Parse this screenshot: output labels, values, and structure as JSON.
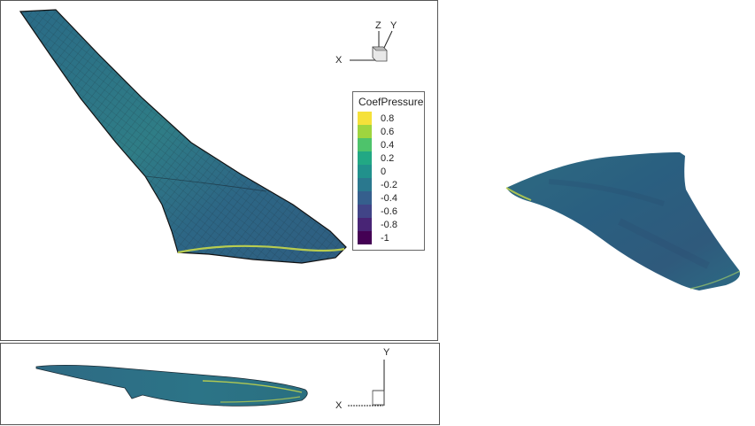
{
  "legend": {
    "title": "CoefPressure",
    "ticks": [
      "0.8",
      "0.6",
      "0.4",
      "0.2",
      "0",
      "-0.2",
      "-0.4",
      "-0.6",
      "-0.8",
      "-1"
    ],
    "colors": [
      "#f5e13a",
      "#9fd53f",
      "#4ec36b",
      "#22a884",
      "#21918c",
      "#2a788e",
      "#355f8d",
      "#414487",
      "#482475",
      "#440154"
    ]
  },
  "axes_main": {
    "x": "X",
    "y": "Y",
    "z": "Z"
  },
  "axes_side": {
    "x": "X",
    "y": "Y"
  },
  "colors": {
    "surface_dark": "#2f5a7a",
    "surface_mid": "#2a7a88",
    "surface_light": "#3a9a7a",
    "edge_highlight": "#c8d84a"
  }
}
